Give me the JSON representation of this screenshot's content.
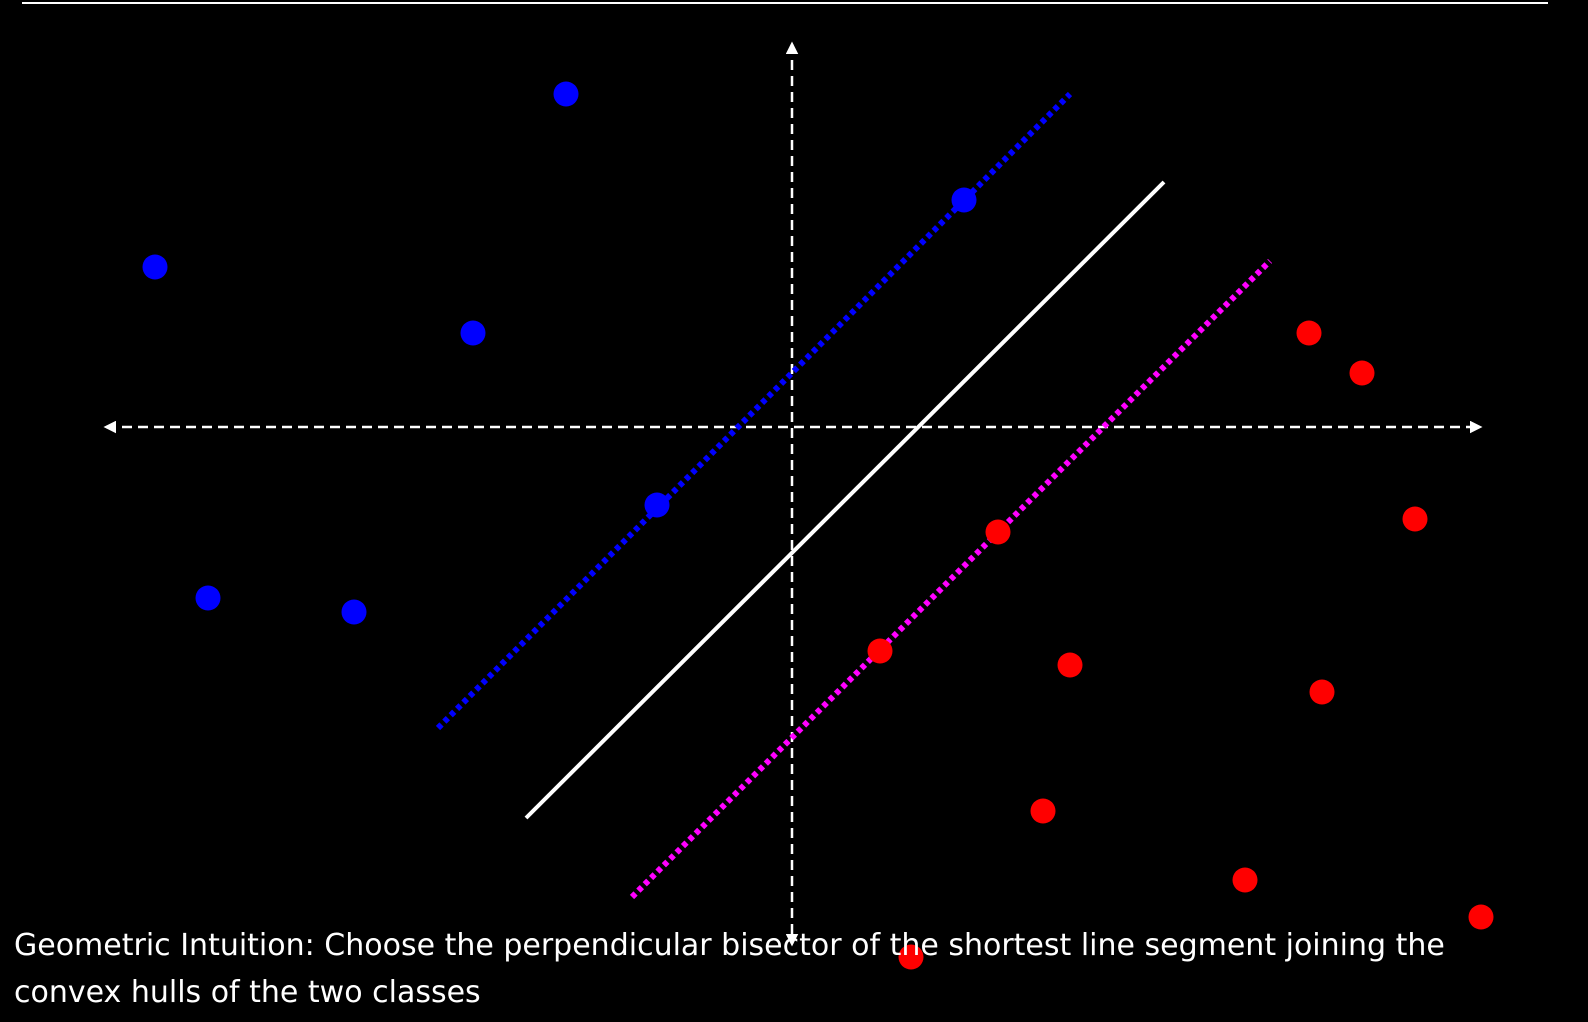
{
  "caption": "Geometric Intuition: Choose the perpendicular bisector of the shortest line segment joining the convex hulls of the two classes",
  "colors": {
    "background": "#000000",
    "axes": "#ffffff",
    "decision_boundary": "#ffffff",
    "class_a": "#0000ff",
    "class_b": "#ff0000",
    "margin_a": "#0000ff",
    "margin_b": "#ff00ff"
  }
}
